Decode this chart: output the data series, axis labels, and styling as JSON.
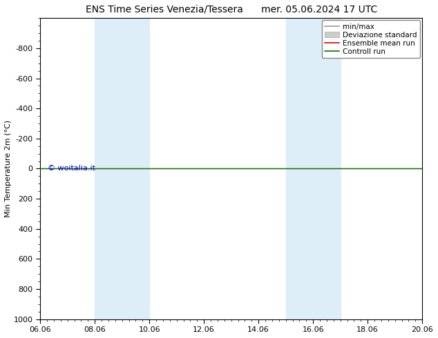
{
  "title_left": "ENS Time Series Venezia/Tessera",
  "title_right": "mer. 05.06.2024 17 UTC",
  "ylabel": "Min Temperature 2m (°C)",
  "ylim": [
    -1000,
    1000
  ],
  "yticks": [
    -800,
    -600,
    -400,
    -200,
    0,
    200,
    400,
    600,
    800,
    1000
  ],
  "xtick_labels": [
    "06.06",
    "08.06",
    "10.06",
    "12.06",
    "14.06",
    "16.06",
    "18.06",
    "20.06"
  ],
  "xtick_positions": [
    0,
    2,
    4,
    6,
    8,
    10,
    12,
    14
  ],
  "xlim": [
    0,
    14
  ],
  "blue_bands": [
    [
      2,
      3
    ],
    [
      3,
      4
    ],
    [
      9,
      10
    ],
    [
      10,
      11
    ]
  ],
  "blue_band_color": "#ddeef8",
  "control_run_color": "#007700",
  "ensemble_mean_color": "#dd0000",
  "minmax_color": "#999999",
  "std_color": "#cccccc",
  "background_color": "#ffffff",
  "watermark": "© woitalia.it",
  "watermark_color": "#0000cc",
  "legend_minmax": "min/max",
  "legend_std": "Deviazione standard",
  "legend_ensemble": "Ensemble mean run",
  "legend_control": "Controll run",
  "title_fontsize": 10,
  "ylabel_fontsize": 8,
  "tick_fontsize": 8,
  "legend_fontsize": 7.5
}
